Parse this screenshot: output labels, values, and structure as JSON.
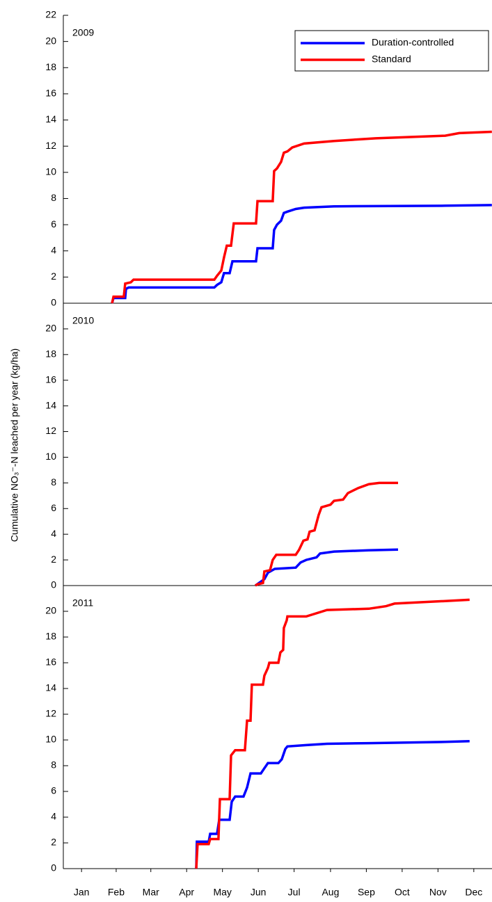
{
  "chart_data": [
    {
      "type": "line",
      "annotation": "2009",
      "legend": "upper right",
      "xlim": [
        0,
        365
      ],
      "ylim": [
        0,
        22
      ],
      "yticks": [
        0,
        2,
        4,
        6,
        8,
        10,
        12,
        14,
        16,
        18,
        20,
        22
      ],
      "series": [
        {
          "name": "Duration-controlled",
          "color": "#0000ff",
          "x": [
            41.5,
            42.7,
            52.7,
            53.3,
            55.7,
            128.6,
            130.9,
            134.5,
            136.8,
            141.6,
            144,
            164.1,
            165.3,
            178.3,
            179.5,
            181.9,
            185.4,
            187.8,
            190.8,
            197.9,
            205,
            230.5,
            325.2,
            364.9
          ],
          "values": [
            0,
            0.4,
            0.4,
            1.1,
            1.2,
            1.2,
            1.4,
            1.6,
            2.3,
            2.3,
            3.2,
            3.2,
            4.2,
            4.2,
            5.6,
            6.0,
            6.3,
            6.9,
            7.0,
            7.2,
            7.3,
            7.4,
            7.45,
            7.5
          ]
        },
        {
          "name": "Standard",
          "color": "#ff0000",
          "x": [
            41.5,
            42.7,
            51.5,
            52.7,
            57.5,
            59.8,
            128.6,
            130.9,
            134.5,
            136.8,
            139.2,
            142.8,
            145.1,
            164.1,
            165.3,
            178.3,
            179.5,
            181.9,
            185.4,
            187.8,
            190.8,
            194.9,
            205,
            230.5,
            266,
            325.2,
            337.1,
            364.9
          ],
          "values": [
            0,
            0.5,
            0.5,
            1.5,
            1.6,
            1.8,
            1.8,
            2.1,
            2.5,
            3.5,
            4.4,
            4.4,
            6.1,
            6.1,
            7.8,
            7.8,
            10.1,
            10.3,
            10.8,
            11.5,
            11.6,
            11.9,
            12.2,
            12.4,
            12.6,
            12.8,
            13.0,
            13.1
          ]
        }
      ]
    },
    {
      "type": "line",
      "annotation": "2010",
      "y_label": "Cumulative NO₃⁻-N leached per year (kg/ha)",
      "xlim": [
        0,
        365
      ],
      "ylim": [
        0,
        22
      ],
      "yticks": [
        0,
        2,
        4,
        6,
        8,
        10,
        12,
        14,
        16,
        18,
        20
      ],
      "series": [
        {
          "color": "#0000ff",
          "x": [
            163.5,
            171.2,
            174.2,
            180.1,
            197.9,
            202,
            206.8,
            215.6,
            218.6,
            230.5,
            260.1,
            285
          ],
          "values": [
            0,
            0.5,
            1.0,
            1.3,
            1.4,
            1.8,
            2.0,
            2.2,
            2.5,
            2.65,
            2.75,
            2.8
          ]
        },
        {
          "color": "#ff0000",
          "x": [
            163.5,
            165.3,
            170,
            171.2,
            176,
            178.3,
            181.3,
            197.9,
            200.8,
            204.4,
            207.9,
            209.7,
            213.9,
            217.4,
            219.8,
            227.5,
            230.5,
            238.2,
            242.3,
            251.2,
            260.1,
            269,
            285
          ],
          "values": [
            0,
            0.1,
            0.2,
            1.1,
            1.2,
            2.0,
            2.4,
            2.4,
            2.8,
            3.5,
            3.6,
            4.2,
            4.3,
            5.5,
            6.1,
            6.3,
            6.6,
            6.7,
            7.2,
            7.6,
            7.9,
            8.0,
            8.0
          ]
        }
      ]
    },
    {
      "type": "line",
      "annotation": "2011",
      "xlim": [
        0,
        365
      ],
      "ylim": [
        0,
        22
      ],
      "yticks": [
        0,
        2,
        4,
        6,
        8,
        10,
        12,
        14,
        16,
        18,
        20
      ],
      "xticks": [
        {
          "value": 15.5,
          "label": "Jan"
        },
        {
          "value": 45,
          "label": "Feb"
        },
        {
          "value": 74.5,
          "label": "Mar"
        },
        {
          "value": 105,
          "label": "Apr"
        },
        {
          "value": 135.5,
          "label": "May"
        },
        {
          "value": 166,
          "label": "Jun"
        },
        {
          "value": 196.5,
          "label": "Jul"
        },
        {
          "value": 227.5,
          "label": "Aug"
        },
        {
          "value": 258,
          "label": "Sep"
        },
        {
          "value": 288.5,
          "label": "Oct"
        },
        {
          "value": 319,
          "label": "Nov"
        },
        {
          "value": 349.5,
          "label": "Dec"
        }
      ],
      "series": [
        {
          "color": "#0000ff",
          "x": [
            113.2,
            113.7,
            123.8,
            125,
            130.9,
            132.7,
            141.6,
            143.4,
            146.3,
            153.4,
            156.4,
            159.4,
            168.2,
            171.2,
            174.2,
            183.1,
            186,
            189,
            190.8,
            206.8,
            224.5,
            260.1,
            325.2,
            345.9
          ],
          "values": [
            0,
            2.1,
            2.1,
            2.7,
            2.7,
            3.8,
            3.8,
            5.2,
            5.6,
            5.6,
            6.3,
            7.4,
            7.4,
            7.8,
            8.2,
            8.2,
            8.5,
            9.3,
            9.5,
            9.6,
            9.7,
            9.75,
            9.85,
            9.9
          ]
        },
        {
          "color": "#ff0000",
          "x": [
            113.2,
            114.3,
            123.8,
            125,
            132.1,
            133.3,
            141.6,
            142.8,
            146.3,
            154.6,
            156.4,
            159.4,
            160.5,
            170,
            171.2,
            174.2,
            175.4,
            183.1,
            184.8,
            187.2,
            187.8,
            190.2,
            190.8,
            206.8,
            224.5,
            260.1,
            274.9,
            282,
            325.2,
            345.9
          ],
          "values": [
            0,
            1.9,
            1.9,
            2.3,
            2.3,
            5.4,
            5.4,
            8.8,
            9.2,
            9.2,
            11.5,
            11.5,
            14.3,
            14.3,
            15.0,
            15.6,
            16.0,
            16.0,
            16.8,
            17.0,
            18.7,
            19.3,
            19.6,
            19.6,
            20.1,
            20.2,
            20.4,
            20.6,
            20.8,
            20.9
          ]
        }
      ]
    }
  ]
}
